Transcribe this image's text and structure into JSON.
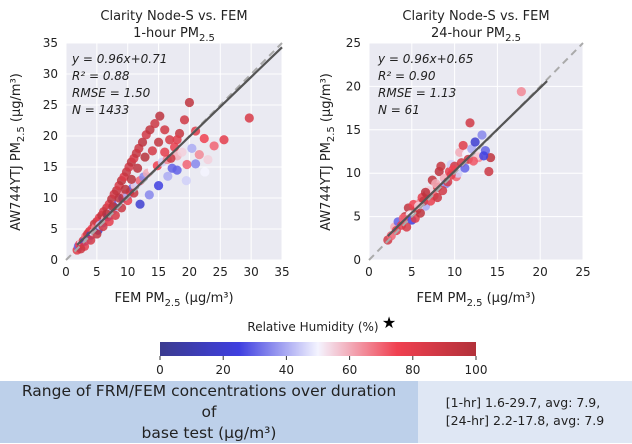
{
  "chart_data": [
    {
      "type": "scatter",
      "title": "Clarity Node-S vs. FEM",
      "subtitle_main": "1-hour PM",
      "subtitle_sub": "2.5",
      "xlabel_main": "FEM PM",
      "xlabel_sub": "2.5",
      "xlabel_unit": " (µg/m³)",
      "ylabel_main": "AW744YTJ PM",
      "ylabel_sub": "2.5",
      "ylabel_unit": " (µg/m³)",
      "xlim": [
        0,
        35
      ],
      "ylim": [
        0,
        35
      ],
      "xticks": [
        "0",
        "5",
        "10",
        "15",
        "20",
        "25",
        "30",
        "35"
      ],
      "yticks": [
        "0",
        "5",
        "10",
        "15",
        "20",
        "25",
        "30",
        "35"
      ],
      "stats": [
        "y = 0.96x+0.71",
        "R² = 0.88",
        "RMSE = 1.50",
        "N = 1433"
      ],
      "fit": {
        "slope": 0.96,
        "intercept": 0.71
      },
      "grid": true,
      "points": [
        [
          1.8,
          1.6,
          82
        ],
        [
          2.0,
          2.2,
          30
        ],
        [
          2.2,
          2.5,
          75
        ],
        [
          2.5,
          2.8,
          55
        ],
        [
          2.8,
          3.1,
          88
        ],
        [
          3.0,
          3.0,
          25
        ],
        [
          3.2,
          3.8,
          70
        ],
        [
          3.5,
          4.2,
          90
        ],
        [
          3.6,
          3.3,
          40
        ],
        [
          3.8,
          4.6,
          85
        ],
        [
          4.0,
          4.0,
          20
        ],
        [
          4.2,
          5.0,
          78
        ],
        [
          4.5,
          4.4,
          50
        ],
        [
          4.6,
          5.8,
          92
        ],
        [
          4.8,
          5.2,
          65
        ],
        [
          5.0,
          6.2,
          88
        ],
        [
          5.2,
          4.8,
          15
        ],
        [
          5.4,
          6.8,
          80
        ],
        [
          5.5,
          5.6,
          45
        ],
        [
          5.8,
          7.2,
          95
        ],
        [
          6.0,
          6.0,
          35
        ],
        [
          6.1,
          7.8,
          85
        ],
        [
          6.4,
          6.6,
          60
        ],
        [
          6.6,
          8.4,
          90
        ],
        [
          6.8,
          7.0,
          25
        ],
        [
          7.0,
          9.0,
          82
        ],
        [
          7.2,
          7.6,
          55
        ],
        [
          7.4,
          9.8,
          96
        ],
        [
          7.6,
          8.0,
          40
        ],
        [
          7.8,
          10.6,
          88
        ],
        [
          8.0,
          8.8,
          70
        ],
        [
          8.2,
          11.2,
          93
        ],
        [
          8.4,
          9.0,
          30
        ],
        [
          8.6,
          12.0,
          86
        ],
        [
          8.8,
          9.6,
          50
        ],
        [
          9.0,
          12.8,
          95
        ],
        [
          9.2,
          10.0,
          20
        ],
        [
          9.4,
          13.4,
          84
        ],
        [
          9.6,
          10.6,
          65
        ],
        [
          9.8,
          14.2,
          92
        ],
        [
          10.0,
          10.4,
          40
        ],
        [
          10.2,
          15.0,
          88
        ],
        [
          10.4,
          11.0,
          75
        ],
        [
          10.6,
          15.8,
          95
        ],
        [
          10.8,
          11.6,
          30
        ],
        [
          11.0,
          16.4,
          86
        ],
        [
          11.2,
          12.0,
          55
        ],
        [
          11.4,
          17.2,
          92
        ],
        [
          11.6,
          12.4,
          45
        ],
        [
          11.8,
          18.0,
          90
        ],
        [
          12.0,
          12.8,
          70
        ],
        [
          12.4,
          19.0,
          96
        ],
        [
          12.6,
          13.4,
          35
        ],
        [
          13.0,
          20.2,
          88
        ],
        [
          13.2,
          14.0,
          60
        ],
        [
          13.6,
          21.0,
          94
        ],
        [
          14.0,
          14.6,
          50
        ],
        [
          14.4,
          22.0,
          90
        ],
        [
          14.8,
          15.2,
          75
        ],
        [
          15.2,
          23.2,
          96
        ],
        [
          15.6,
          15.8,
          45
        ],
        [
          16.0,
          21.0,
          88
        ],
        [
          16.4,
          16.2,
          65
        ],
        [
          16.8,
          19.4,
          85
        ],
        [
          17.2,
          14.8,
          30
        ],
        [
          17.6,
          18.2,
          78
        ],
        [
          18.0,
          16.8,
          60
        ],
        [
          18.4,
          20.4,
          92
        ],
        [
          18.8,
          17.4,
          55
        ],
        [
          19.2,
          22.6,
          88
        ],
        [
          19.6,
          15.4,
          70
        ],
        [
          20.0,
          25.4,
          95
        ],
        [
          20.4,
          18.0,
          40
        ],
        [
          21.0,
          20.8,
          82
        ],
        [
          21.6,
          17.0,
          65
        ],
        [
          22.4,
          19.6,
          75
        ],
        [
          23.0,
          16.2,
          55
        ],
        [
          24.0,
          18.4,
          70
        ],
        [
          25.6,
          19.4,
          80
        ],
        [
          29.7,
          22.9,
          85
        ],
        [
          12.0,
          9.0,
          20
        ],
        [
          13.5,
          10.5,
          35
        ],
        [
          15.0,
          12.0,
          25
        ],
        [
          16.5,
          13.5,
          40
        ],
        [
          18.0,
          14.5,
          30
        ],
        [
          19.5,
          12.8,
          45
        ],
        [
          21.0,
          15.5,
          35
        ],
        [
          22.5,
          14.2,
          50
        ],
        [
          7.0,
          6.2,
          80
        ],
        [
          8.0,
          7.2,
          85
        ],
        [
          9.0,
          8.4,
          90
        ],
        [
          10.0,
          9.6,
          78
        ],
        [
          11.0,
          10.8,
          92
        ],
        [
          6.0,
          5.4,
          88
        ],
        [
          5.0,
          4.2,
          94
        ],
        [
          4.0,
          3.2,
          86
        ],
        [
          3.0,
          2.2,
          80
        ],
        [
          2.4,
          1.8,
          90
        ],
        [
          14.0,
          17.6,
          86
        ],
        [
          15.0,
          19.0,
          94
        ],
        [
          16.0,
          17.4,
          80
        ],
        [
          17.0,
          16.4,
          90
        ],
        [
          18.0,
          19.4,
          82
        ],
        [
          12.8,
          16.6,
          98
        ],
        [
          11.6,
          14.8,
          96
        ],
        [
          10.6,
          13.0,
          98
        ],
        [
          9.6,
          11.4,
          97
        ],
        [
          8.6,
          10.0,
          96
        ],
        [
          7.6,
          8.6,
          98
        ],
        [
          6.6,
          7.4,
          97
        ]
      ]
    },
    {
      "type": "scatter",
      "title": "Clarity Node-S vs. FEM",
      "subtitle_main": "24-hour PM",
      "subtitle_sub": "2.5",
      "xlabel_main": "FEM PM",
      "xlabel_sub": "2.5",
      "xlabel_unit": " (µg/m³)",
      "ylabel_main": "AW744YTJ PM",
      "ylabel_sub": "2.5",
      "ylabel_unit": " (µg/m³)",
      "xlim": [
        0,
        25
      ],
      "ylim": [
        0,
        25
      ],
      "xticks": [
        "0",
        "5",
        "10",
        "15",
        "20",
        "25"
      ],
      "yticks": [
        "0",
        "5",
        "10",
        "15",
        "20",
        "25"
      ],
      "stats": [
        "y = 0.96x+0.65",
        "R² = 0.90",
        "RMSE = 1.13",
        "N = 61"
      ],
      "fit": {
        "slope": 0.96,
        "intercept": 0.65
      },
      "grid": true,
      "points": [
        [
          2.2,
          2.3,
          88
        ],
        [
          3.0,
          3.8,
          60
        ],
        [
          3.4,
          4.4,
          30
        ],
        [
          3.8,
          4.0,
          80
        ],
        [
          4.2,
          5.0,
          92
        ],
        [
          4.6,
          6.0,
          94
        ],
        [
          4.8,
          5.2,
          50
        ],
        [
          5.0,
          4.6,
          25
        ],
        [
          5.2,
          6.4,
          75
        ],
        [
          5.6,
          5.8,
          85
        ],
        [
          6.0,
          6.6,
          65
        ],
        [
          6.2,
          7.2,
          80
        ],
        [
          6.6,
          6.2,
          40
        ],
        [
          6.8,
          7.6,
          90
        ],
        [
          7.0,
          8.0,
          55
        ],
        [
          7.4,
          9.2,
          94
        ],
        [
          7.6,
          7.4,
          70
        ],
        [
          8.0,
          8.4,
          85
        ],
        [
          8.2,
          10.2,
          96
        ],
        [
          8.4,
          10.8,
          92
        ],
        [
          8.8,
          9.4,
          60
        ],
        [
          9.0,
          8.8,
          35
        ],
        [
          9.4,
          10.2,
          80
        ],
        [
          9.6,
          11.0,
          45
        ],
        [
          10.0,
          10.8,
          88
        ],
        [
          10.2,
          9.6,
          70
        ],
        [
          10.6,
          12.4,
          60
        ],
        [
          11.0,
          13.2,
          82
        ],
        [
          11.4,
          12.2,
          50
        ],
        [
          11.8,
          15.8,
          88
        ],
        [
          12.0,
          12.8,
          40
        ],
        [
          12.4,
          13.6,
          20
        ],
        [
          12.8,
          11.8,
          65
        ],
        [
          13.2,
          14.4,
          35
        ],
        [
          13.6,
          12.6,
          30
        ],
        [
          14.0,
          10.2,
          90
        ],
        [
          14.2,
          11.8,
          95
        ],
        [
          17.8,
          19.4,
          65
        ],
        [
          5.4,
          4.8,
          82
        ],
        [
          6.4,
          6.8,
          92
        ],
        [
          7.2,
          6.8,
          78
        ],
        [
          8.6,
          8.0,
          88
        ],
        [
          9.8,
          10.4,
          75
        ],
        [
          10.8,
          11.2,
          85
        ],
        [
          11.6,
          11.6,
          90
        ],
        [
          3.2,
          3.4,
          82
        ],
        [
          4.0,
          4.8,
          70
        ],
        [
          5.8,
          6.2,
          55
        ],
        [
          6.6,
          7.8,
          96
        ],
        [
          7.8,
          8.8,
          60
        ],
        [
          9.2,
          9.0,
          86
        ],
        [
          10.4,
          10.0,
          45
        ],
        [
          12.6,
          12.0,
          55
        ],
        [
          13.4,
          12.0,
          25
        ],
        [
          2.6,
          2.8,
          70
        ],
        [
          4.4,
          3.8,
          85
        ],
        [
          8.0,
          7.2,
          90
        ],
        [
          9.6,
          9.8,
          80
        ],
        [
          11.2,
          10.6,
          30
        ],
        [
          12.2,
          11.4,
          72
        ],
        [
          6.0,
          5.4,
          95
        ]
      ]
    }
  ],
  "colorbar": {
    "label": "Relative Humidity (%)",
    "ticks": [
      "0",
      "20",
      "40",
      "60",
      "80",
      "100"
    ],
    "range": [
      0,
      100
    ],
    "colors": [
      "#3b3b8f",
      "#3f3fe0",
      "#ffffff",
      "#f04050",
      "#b2313a"
    ],
    "marker": "★"
  },
  "range_panel": {
    "left_line1": "Range of FRM/FEM concentrations over duration of",
    "left_line2": "base test (µg/m³)",
    "right_line1": "[1-hr] 1.6-29.7, avg: 7.9,",
    "right_line2": "[24-hr] 2.2-17.8, avg: 7.9"
  },
  "colors": {
    "plot_bg": "#eaeaf2",
    "fit_line": "#555555",
    "one_to_one": "#aaaaaa"
  }
}
